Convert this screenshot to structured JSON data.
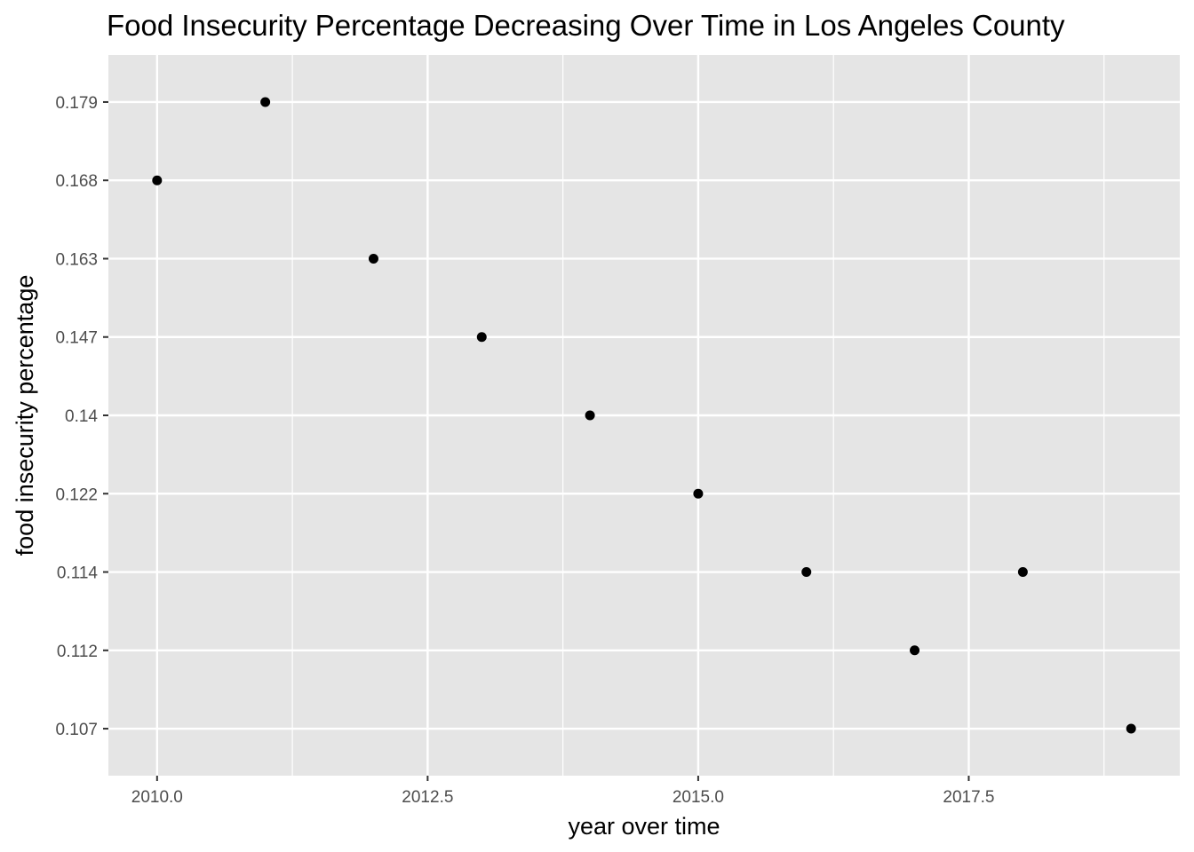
{
  "chart_data": {
    "type": "scatter",
    "title": "Food Insecurity Percentage Decreasing Over Time in Los Angeles County",
    "xlabel": "year over time",
    "ylabel": "food insecurity percentage",
    "y_scale": "categorical",
    "y_categories": [
      "0.107",
      "0.112",
      "0.114",
      "0.122",
      "0.14",
      "0.147",
      "0.163",
      "0.168",
      "0.179"
    ],
    "x_ticks": [
      "2010.0",
      "2012.5",
      "2015.0",
      "2017.5"
    ],
    "x_tick_values": [
      2010.0,
      2012.5,
      2015.0,
      2017.5
    ],
    "xlim": [
      2009.55,
      2019.45
    ],
    "grid": true,
    "legend": "none",
    "points": [
      {
        "x": 2010,
        "y": "0.168"
      },
      {
        "x": 2011,
        "y": "0.179"
      },
      {
        "x": 2012,
        "y": "0.163"
      },
      {
        "x": 2013,
        "y": "0.147"
      },
      {
        "x": 2014,
        "y": "0.14"
      },
      {
        "x": 2015,
        "y": "0.122"
      },
      {
        "x": 2016,
        "y": "0.114"
      },
      {
        "x": 2017,
        "y": "0.112"
      },
      {
        "x": 2018,
        "y": "0.114"
      },
      {
        "x": 2019,
        "y": "0.107"
      }
    ],
    "colors": {
      "panel": "#e5e5e5",
      "grid": "#ffffff",
      "point": "#000000",
      "tick_text": "#4d4d4d",
      "tick_mark": "#333333"
    }
  }
}
